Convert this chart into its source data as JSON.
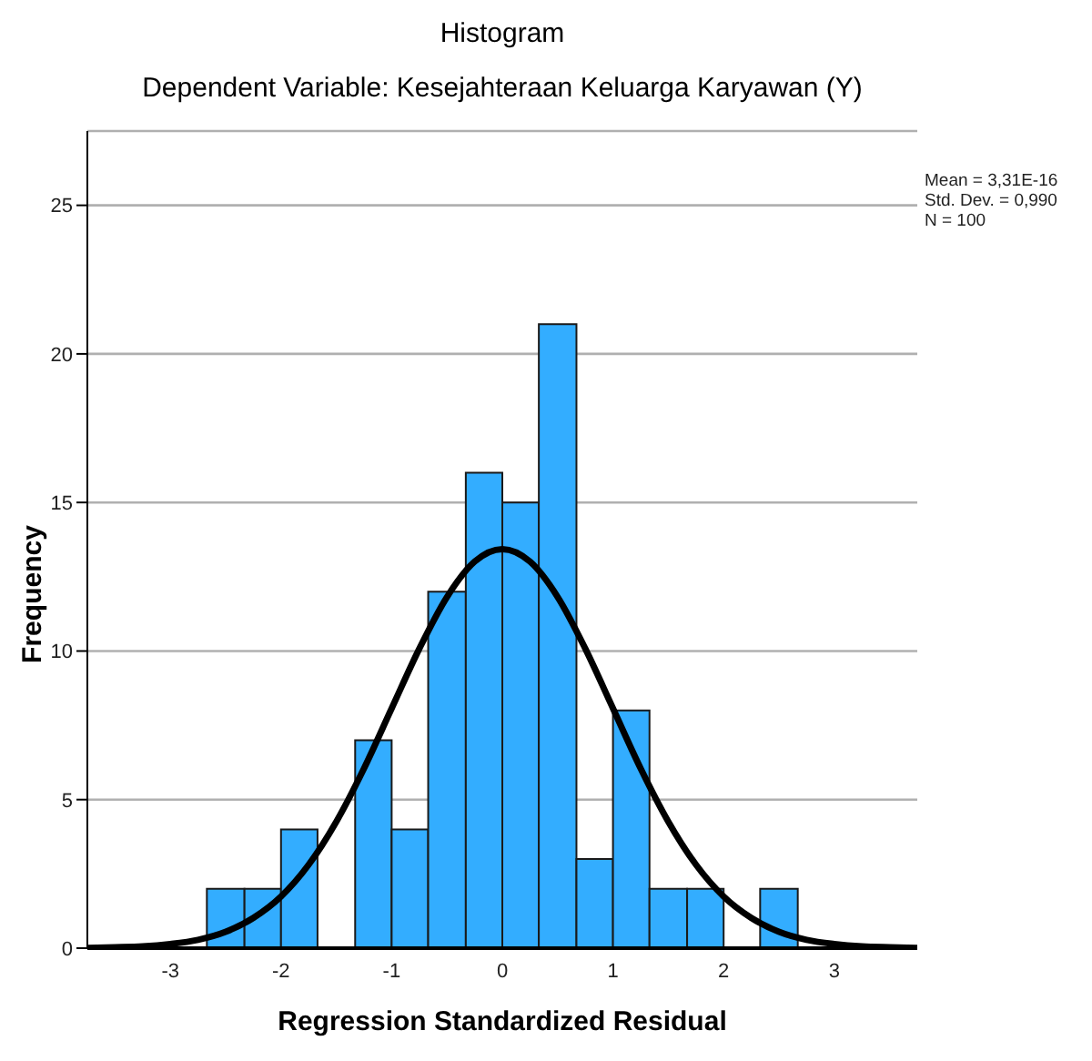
{
  "chart_data": {
    "type": "histogram",
    "title": "Histogram",
    "subtitle": "Dependent Variable: Kesejahteraan Keluarga Karyawan (Y)",
    "xlabel": "Regression Standardized Residual",
    "ylabel": "Frequency",
    "bins": [
      -2.67,
      -2.33,
      -2,
      -1.67,
      -1.33,
      -1,
      -0.67,
      -0.33,
      0,
      0.33,
      0.67,
      1,
      1.33,
      1.67,
      2,
      2.33,
      2.67
    ],
    "values": [
      2,
      2,
      4,
      0,
      7,
      4,
      12,
      16,
      15,
      21,
      3,
      8,
      2,
      2,
      0,
      2
    ],
    "color": "#33adff",
    "series": [
      {
        "type": "line",
        "color": "#000000",
        "x": [
          -3.75,
          -3.5,
          -3.25,
          -3,
          -2.75,
          -2.5,
          -2.25,
          -2,
          -1.75,
          -1.5,
          -1.25,
          -1,
          -0.75,
          -0.5,
          -0.25,
          0,
          0.25,
          0.5,
          0.75,
          1,
          1.25,
          1.5,
          1.75,
          2,
          2.25,
          2.5,
          2.75,
          3,
          3.25,
          3.5,
          3.75
        ],
        "values": [
          0.01,
          0.03,
          0.06,
          0.14,
          0.28,
          0.55,
          1.02,
          1.74,
          2.81,
          4.26,
          6.05,
          8.07,
          10.08,
          11.82,
          13.01,
          13.43,
          13.01,
          11.82,
          10.08,
          8.07,
          6.05,
          4.26,
          2.81,
          1.74,
          1.02,
          0.55,
          0.28,
          0.14,
          0.06,
          0.03,
          0.01
        ]
      }
    ],
    "xlim": [
      -3.75,
      3.75
    ],
    "xticks": [
      -3,
      -2,
      -1,
      0,
      1,
      2,
      3
    ],
    "ylim": [
      0,
      27.5
    ],
    "yticks": [
      0,
      5,
      10,
      15,
      20,
      25
    ],
    "grid": "y",
    "annotations": [
      "Mean = 3,31E-16",
      "Std. Dev. = 0,990",
      "N = 100"
    ]
  }
}
